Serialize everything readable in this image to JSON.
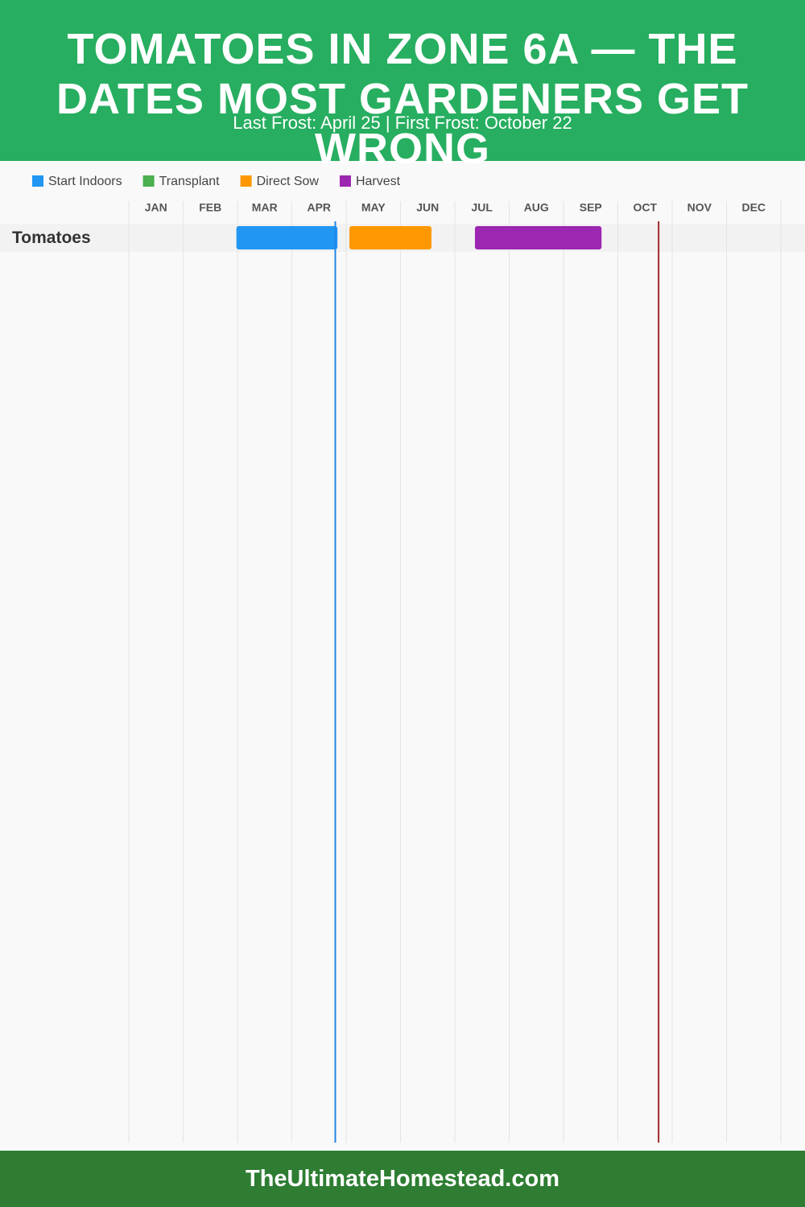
{
  "chart_data": {
    "type": "gantt",
    "title": "TOMATOES IN ZONE 6A — THE DATES MOST GARDENERS GET WRONG",
    "subtitle": "Last Frost: April 25 | First Frost: October 22",
    "footer": "TheUltimateHomestead.com",
    "categories": [
      "JAN",
      "FEB",
      "MAR",
      "APR",
      "MAY",
      "JUN",
      "JUL",
      "AUG",
      "SEP",
      "OCT",
      "NOV",
      "DEC"
    ],
    "xlim": [
      0,
      12
    ],
    "xticks": [
      0,
      1,
      2,
      3,
      4,
      5,
      6,
      7,
      8,
      9,
      10,
      11,
      12
    ],
    "grid": true,
    "series": [
      {
        "name": "Start Indoors",
        "color": "#2196f3"
      },
      {
        "name": "Transplant",
        "color": "#4caf50"
      },
      {
        "name": "Direct Sow",
        "color": "#ff9800"
      },
      {
        "name": "Harvest",
        "color": "#9c27b0"
      }
    ],
    "rows": [
      {
        "name": "Tomatoes",
        "bars": [
          {
            "series": 0,
            "start": 1.98,
            "end": 3.84
          },
          {
            "series": 2,
            "start": 4.06,
            "end": 5.57
          },
          {
            "series": 3,
            "start": 6.37,
            "end": 8.7
          }
        ]
      }
    ],
    "frost_lines": [
      {
        "value": 3.8,
        "color": "#1e88e5"
      },
      {
        "value": 9.75,
        "color": "#a52a2a"
      }
    ]
  }
}
